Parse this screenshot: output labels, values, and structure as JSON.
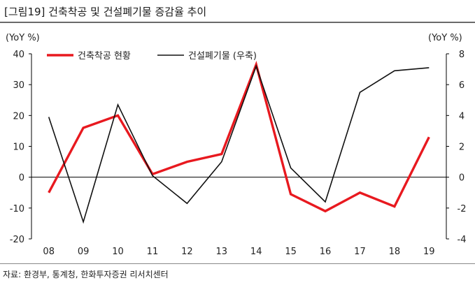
{
  "figure": {
    "title": "[그림19] 건축착공 및 건설폐기물 증감율 추이",
    "source": "자료: 환경부, 통계청, 한화투자증권 리서치센터"
  },
  "chart_data": {
    "type": "line",
    "categories": [
      "08",
      "09",
      "10",
      "11",
      "12",
      "13",
      "14",
      "15",
      "16",
      "17",
      "18",
      "19"
    ],
    "left_axis": {
      "unit_label": "(YoY %)",
      "ylim": [
        -20,
        40
      ],
      "ticks": [
        "40",
        "30",
        "20",
        "10",
        "0",
        "-10",
        "-20"
      ],
      "tick_values": [
        40,
        30,
        20,
        10,
        0,
        -10,
        -20
      ]
    },
    "right_axis": {
      "unit_label": "(YoY %)",
      "ylim": [
        -4,
        8
      ],
      "ticks": [
        "8",
        "6",
        "4",
        "2",
        "0",
        "-2",
        "-4"
      ],
      "tick_values": [
        8,
        6,
        4,
        2,
        0,
        -2,
        -4
      ]
    },
    "legend_position": "top-left",
    "grid": false,
    "series": [
      {
        "name": "건축착공 현황",
        "axis": "left",
        "color": "#e8191f",
        "values": [
          -5,
          16,
          20,
          1,
          5,
          7.5,
          36.5,
          -5.5,
          -11,
          -5,
          -9.5,
          13
        ]
      },
      {
        "name": "건설폐기물 (우축)",
        "axis": "right",
        "color": "#111111",
        "values": [
          3.9,
          -2.9,
          4.7,
          0.1,
          -1.7,
          1.0,
          7.2,
          0.6,
          -1.6,
          5.5,
          6.9,
          7.1
        ]
      }
    ]
  }
}
